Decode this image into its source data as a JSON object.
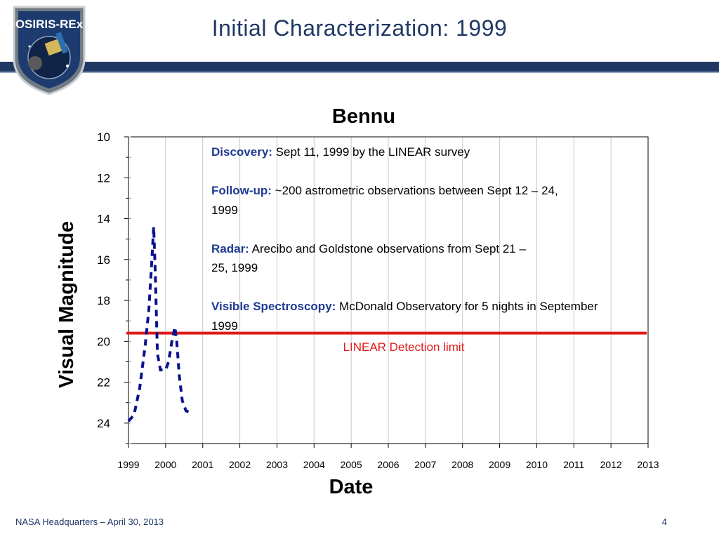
{
  "slide": {
    "title": "Initial Characterization: 1999",
    "logo_text": "OSIRIS-REx",
    "footer_left": "NASA Headquarters – April 30, 2013",
    "page_number": "4",
    "accent_color": "#1f3864"
  },
  "info": {
    "discovery_label": "Discovery:",
    "discovery_text": " Sept 11, 1999  by the LINEAR survey",
    "followup_label": "Follow-up:",
    "followup_text": " ~200 astrometric observations between Sept 12 – 24, 1999",
    "radar_label": "Radar:",
    "radar_text": " Arecibo and Goldstone observations from Sept 21 – 25, 1999",
    "spectro_label": "Visible Spectroscopy:",
    "spectro_text": " McDonald Observatory for 5 nights in September 1999"
  },
  "chart_data": {
    "type": "line",
    "title": "Bennu",
    "xlabel": "Date",
    "ylabel": "Visual Magnitude",
    "xlim": [
      1999,
      2013
    ],
    "ylim": [
      10,
      25
    ],
    "y_inverted": true,
    "x_ticks": [
      1999,
      2000,
      2001,
      2002,
      2003,
      2004,
      2005,
      2006,
      2007,
      2008,
      2009,
      2010,
      2011,
      2012,
      2013
    ],
    "x_tick_labels": [
      "1999",
      "2000",
      "2001",
      "2002",
      "2003",
      "2004",
      "2005",
      "2006",
      "2007",
      "2008",
      "2009",
      "2010",
      "2011",
      "2012",
      "2013"
    ],
    "y_ticks": [
      10,
      12,
      14,
      16,
      18,
      20,
      22,
      24
    ],
    "y_tick_labels": [
      "10",
      "12",
      "14",
      "16",
      "18",
      "20",
      "22",
      "24"
    ],
    "grid": "x-major",
    "series": [
      {
        "color": "#0a128f",
        "style": "dashed",
        "x": [
          1999.0,
          1999.15,
          1999.3,
          1999.45,
          1999.55,
          1999.62,
          1999.68,
          1999.72,
          1999.78,
          1999.86,
          2000.0,
          2000.08,
          2000.17,
          2000.25,
          2000.3,
          2000.37,
          2000.45,
          2000.55,
          2000.7
        ],
        "y": [
          23.9,
          23.6,
          22.3,
          20.2,
          18.4,
          16.3,
          14.4,
          16.6,
          20.6,
          21.4,
          21.4,
          21.0,
          20.0,
          19.3,
          20.0,
          21.7,
          22.9,
          23.4,
          23.5
        ]
      }
    ],
    "reference_line": {
      "label": "LINEAR Detection limit",
      "y": 19.6,
      "color": "#e21a1a"
    }
  }
}
